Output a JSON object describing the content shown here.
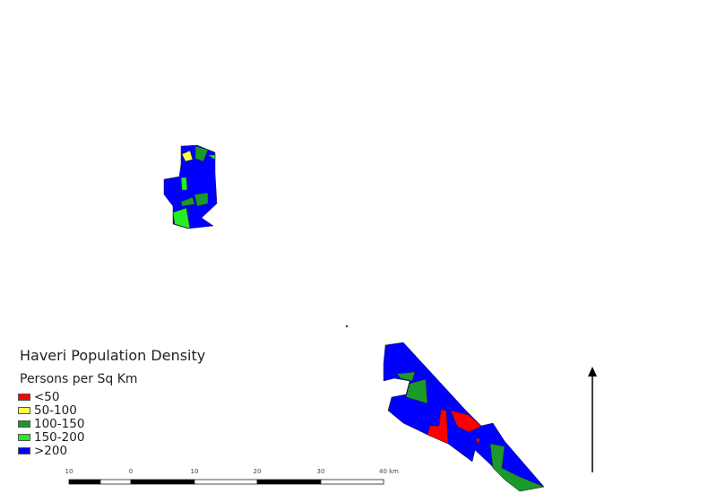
{
  "legend": {
    "title": "Haveri Population Density",
    "subtitle": "Persons per Sq Km",
    "items": [
      {
        "label": "<50",
        "color": "#ff0000"
      },
      {
        "label": "50-100",
        "color": "#ffff44"
      },
      {
        "label": "100-150",
        "color": "#1a9a2a"
      },
      {
        "label": "150-200",
        "color": "#22ee22"
      },
      {
        "label": ">200",
        "color": "#0000ff"
      }
    ]
  },
  "scale_bar": {
    "ticks": [
      "10",
      "0",
      "10",
      "20",
      "30",
      "40 km"
    ]
  },
  "north_arrow": {
    "icon": "north-arrow-icon"
  }
}
